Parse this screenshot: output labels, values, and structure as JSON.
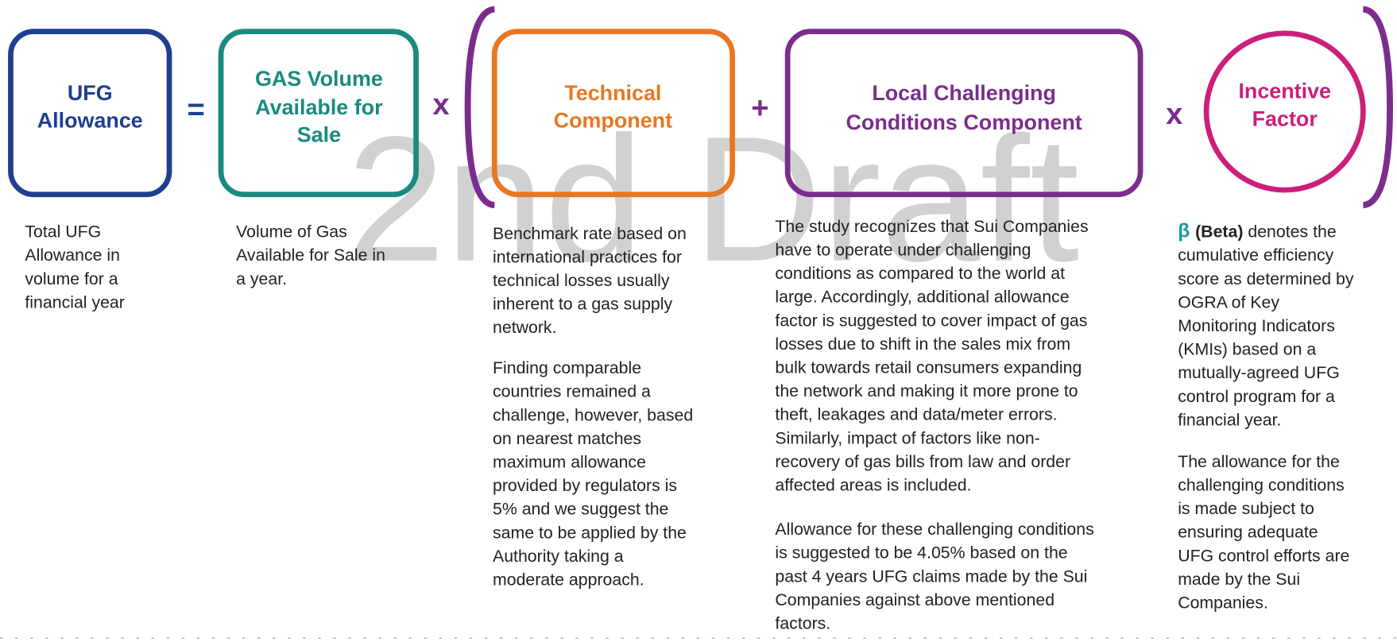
{
  "watermark": "2nd Draft",
  "operators": [
    "=",
    "x",
    "+",
    "x"
  ],
  "terms": [
    {
      "label": [
        "UFG",
        "Allowance"
      ],
      "description": [
        [
          "Total UFG",
          "Allowance in",
          "volume for a",
          "financial year"
        ]
      ]
    },
    {
      "label": [
        "GAS Volume",
        "Available for",
        "Sale"
      ],
      "description": [
        [
          "Volume of Gas",
          "Available for Sale in",
          "a year."
        ]
      ]
    },
    {
      "label": [
        "Technical",
        "Component"
      ],
      "description": [
        [
          "Benchmark rate based on",
          "international practices for",
          "technical losses usually",
          "inherent to a gas supply",
          "network."
        ],
        [
          "Finding comparable",
          "countries remained a",
          "challenge, however, based",
          "on nearest matches",
          "maximum allowance",
          "provided by regulators is",
          "5% and we suggest the",
          "same to be applied by the",
          "Authority taking a",
          "moderate approach."
        ]
      ]
    },
    {
      "label": [
        "Local Challenging",
        "Conditions Component"
      ],
      "description": [
        [
          "The study recognizes that Sui Companies",
          "have to operate under challenging",
          "conditions as compared to the world at",
          "large. Accordingly, additional allowance",
          "factor is suggested to cover impact of gas",
          "losses due to shift in the sales mix from",
          "bulk towards retail consumers expanding",
          "the network and making it more prone to",
          "theft, leakages and data/meter errors.",
          "Similarly, impact of factors like non-",
          "recovery of gas bills from law and order",
          "affected areas is included."
        ],
        [
          "Allowance for these challenging conditions",
          "is suggested to be 4.05% based on the",
          "past 4 years UFG claims made by the Sui",
          "Companies against above mentioned",
          "factors."
        ]
      ]
    },
    {
      "label": [
        "Incentive",
        "Factor"
      ],
      "description": [
        [
          [
            "β",
            "(Beta)",
            "denotes the"
          ],
          "cumulative efficiency",
          "score as determined by",
          "OGRA of Key",
          "Monitoring Indicators",
          "(KMIs) based on a",
          "mutually-agreed UFG",
          "control program for a",
          "financial year."
        ],
        [
          "The allowance for the",
          "challenging conditions",
          "is made subject to",
          "ensuring adequate",
          "UFG control efforts are",
          "made by the Sui",
          "Companies."
        ]
      ]
    }
  ]
}
